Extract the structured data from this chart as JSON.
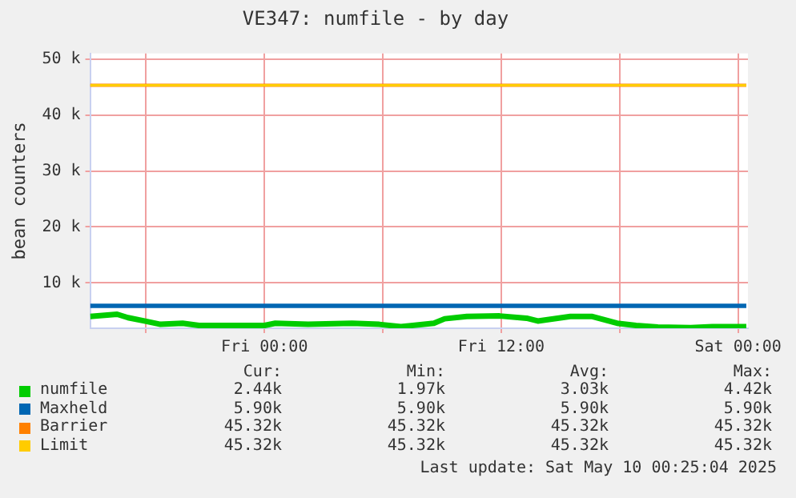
{
  "chart_data": {
    "type": "line",
    "title": "VE347: numfile - by day",
    "ylabel": "bean counters",
    "xlim": [
      "2025-05-08T15:10",
      "2025-05-10T00:30"
    ],
    "xticks": [
      {
        "value": "2025-05-08T18:00",
        "label": null
      },
      {
        "value": "2025-05-09T00:00",
        "label": "Fri 00:00"
      },
      {
        "value": "2025-05-09T06:00",
        "label": null
      },
      {
        "value": "2025-05-09T12:00",
        "label": "Fri 12:00"
      },
      {
        "value": "2025-05-09T18:00",
        "label": null
      },
      {
        "value": "2025-05-10T00:00",
        "label": "Sat 00:00"
      }
    ],
    "ylim": [
      1900,
      51000
    ],
    "yticks": [
      {
        "value": 10000,
        "label": "10 k"
      },
      {
        "value": 20000,
        "label": "20 k"
      },
      {
        "value": 30000,
        "label": "30 k"
      },
      {
        "value": 40000,
        "label": "40 k"
      },
      {
        "value": 50000,
        "label": "50 k"
      }
    ],
    "grid": true,
    "legend": "bottom",
    "marker": "none",
    "line_style": "solid",
    "series": [
      {
        "name": "numfile",
        "color": "#00cc00",
        "x": [
          "2025-05-08T15:10",
          "2025-05-08T16:32",
          "2025-05-08T17:05",
          "2025-05-08T17:55",
          "2025-05-08T18:44",
          "2025-05-08T19:51",
          "2025-05-08T20:41",
          "2025-05-08T22:04",
          "2025-05-09T00:00",
          "2025-05-09T00:33",
          "2025-05-09T02:13",
          "2025-05-09T04:26",
          "2025-05-09T05:49",
          "2025-05-09T06:55",
          "2025-05-09T08:35",
          "2025-05-09T09:08",
          "2025-05-09T10:15",
          "2025-05-09T11:55",
          "2025-05-09T13:17",
          "2025-05-09T13:51",
          "2025-05-09T15:30",
          "2025-05-09T16:37",
          "2025-05-09T17:52",
          "2025-05-09T18:50",
          "2025-05-09T19:56",
          "2025-05-09T21:36",
          "2025-05-09T22:42",
          "2025-05-10T00:25"
        ],
        "values": [
          4000,
          4400,
          3800,
          3200,
          2600,
          2800,
          2400,
          2400,
          2400,
          2800,
          2600,
          2800,
          2600,
          2200,
          2800,
          3600,
          4000,
          4100,
          3700,
          3200,
          4000,
          4000,
          2800,
          2400,
          2100,
          2000,
          2200,
          2200
        ]
      },
      {
        "name": "Maxheld",
        "color": "#0066b3",
        "x": [
          "2025-05-08T15:10",
          "2025-05-10T00:25"
        ],
        "values": [
          5900,
          5900
        ]
      },
      {
        "name": "Barrier",
        "color": "#ff8000",
        "x": [
          "2025-05-08T15:10",
          "2025-05-10T00:25"
        ],
        "values": [
          45320,
          45320
        ]
      },
      {
        "name": "Limit",
        "color": "#ffcc00",
        "x": [
          "2025-05-08T15:10",
          "2025-05-10T00:25"
        ],
        "values": [
          45320,
          45320
        ]
      }
    ],
    "annotations": [
      "Cur:",
      "Min:",
      "Avg:",
      "Max:",
      "2.44k",
      "1.97k",
      "3.03k",
      "4.42k",
      "5.90k",
      "5.90k",
      "5.90k",
      "5.90k",
      "45.32k",
      "45.32k",
      "45.32k",
      "45.32k",
      "45.32k",
      "45.32k",
      "45.32k",
      "45.32k",
      "Last update: Sat May 10 00:25:04 2025"
    ]
  }
}
